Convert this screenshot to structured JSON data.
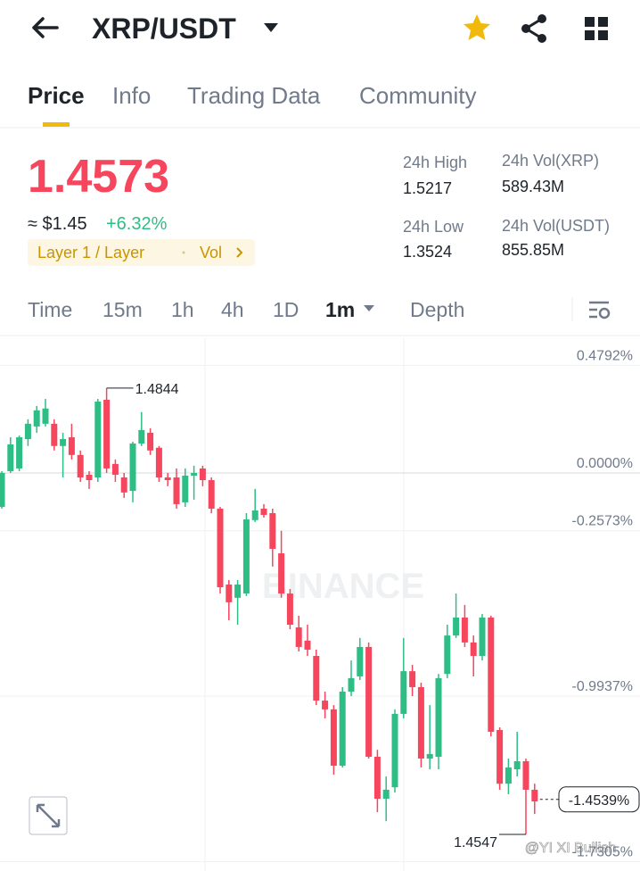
{
  "header": {
    "title": "XRP/USDT"
  },
  "tabs": [
    "Price",
    "Info",
    "Trading Data",
    "Community"
  ],
  "price": {
    "last": "1.4573",
    "approx": "≈ $1.45",
    "change": "+6.32%",
    "tags": [
      "Layer 1 / Layer",
      "Vol"
    ]
  },
  "stats": [
    {
      "label": "24h High",
      "value": "1.5217"
    },
    {
      "label": "24h Vol(XRP)",
      "value": "589.43M"
    },
    {
      "label": "24h Low",
      "value": "1.3524"
    },
    {
      "label": "24h Vol(USDT)",
      "value": "855.85M"
    }
  ],
  "intervals": [
    "Time",
    "15m",
    "1h",
    "4h",
    "1D",
    "1m",
    "Depth"
  ],
  "chart_data": {
    "type": "candlestick",
    "up_color": "#2ebd85",
    "down_color": "#f6465d",
    "watermark": "BINANCE",
    "ylim": [
      -1.749,
      0.604
    ],
    "yticks": [
      {
        "value": 0.4792,
        "label": "0.4792%"
      },
      {
        "value": 0,
        "label": "0.0000%"
      },
      {
        "value": -0.2573,
        "label": "-0.2573%"
      },
      {
        "value": -0.9937,
        "label": "-0.9937%"
      },
      {
        "value": -1.7305,
        "label": "-1.7305%"
      }
    ],
    "current": {
      "value": -1.4539,
      "label": "-1.4539%"
    },
    "annotations": [
      {
        "text": "1.4844"
      },
      {
        "text": "1.4547"
      }
    ],
    "candles": [
      {
        "o": -0.151,
        "h": 0.008,
        "l": -0.159,
        "c": 0.0
      },
      {
        "o": 0.008,
        "h": 0.159,
        "l": 0.0,
        "c": 0.127
      },
      {
        "o": 0.02,
        "h": 0.167,
        "l": 0.008,
        "c": 0.159
      },
      {
        "o": 0.151,
        "h": 0.239,
        "l": 0.12,
        "c": 0.219
      },
      {
        "o": 0.207,
        "h": 0.298,
        "l": 0.179,
        "c": 0.279
      },
      {
        "o": 0.219,
        "h": 0.33,
        "l": 0.207,
        "c": 0.287
      },
      {
        "o": 0.219,
        "h": 0.239,
        "l": 0.1,
        "c": 0.12
      },
      {
        "o": 0.12,
        "h": 0.179,
        "l": -0.02,
        "c": 0.151
      },
      {
        "o": 0.159,
        "h": 0.219,
        "l": 0.06,
        "c": 0.08
      },
      {
        "o": 0.08,
        "h": 0.1,
        "l": -0.04,
        "c": -0.02
      },
      {
        "o": -0.008,
        "h": 0.008,
        "l": -0.071,
        "c": -0.032
      },
      {
        "o": -0.02,
        "h": 0.33,
        "l": -0.04,
        "c": 0.318
      },
      {
        "o": 0.326,
        "h": 0.378,
        "l": 0.0,
        "c": 0.02
      },
      {
        "o": 0.04,
        "h": 0.06,
        "l": -0.04,
        "c": -0.008
      },
      {
        "o": -0.02,
        "h": 0.0,
        "l": -0.111,
        "c": -0.087
      },
      {
        "o": -0.08,
        "h": 0.139,
        "l": -0.131,
        "c": 0.131
      },
      {
        "o": 0.131,
        "h": 0.271,
        "l": 0.12,
        "c": 0.191
      },
      {
        "o": 0.179,
        "h": 0.199,
        "l": 0.08,
        "c": 0.1
      },
      {
        "o": 0.112,
        "h": 0.12,
        "l": -0.04,
        "c": -0.02
      },
      {
        "o": -0.02,
        "h": 0.0,
        "l": -0.059,
        "c": -0.032
      },
      {
        "o": -0.02,
        "h": 0.02,
        "l": -0.159,
        "c": -0.139
      },
      {
        "o": -0.131,
        "h": 0.02,
        "l": -0.151,
        "c": -0.012
      },
      {
        "o": -0.012,
        "h": 0.032,
        "l": -0.119,
        "c": 0.0
      },
      {
        "o": 0.02,
        "h": 0.032,
        "l": -0.059,
        "c": -0.032
      },
      {
        "o": -0.032,
        "h": -0.02,
        "l": -0.179,
        "c": -0.159
      },
      {
        "o": -0.159,
        "h": -0.151,
        "l": -0.537,
        "c": -0.509
      },
      {
        "o": -0.497,
        "h": -0.477,
        "l": -0.656,
        "c": -0.576
      },
      {
        "o": -0.556,
        "h": -0.477,
        "l": -0.676,
        "c": -0.497
      },
      {
        "o": -0.537,
        "h": -0.179,
        "l": -0.548,
        "c": -0.207
      },
      {
        "o": -0.21,
        "h": -0.071,
        "l": -0.218,
        "c": -0.167
      },
      {
        "o": -0.159,
        "h": -0.139,
        "l": -0.199,
        "c": -0.187
      },
      {
        "o": -0.179,
        "h": -0.159,
        "l": -0.417,
        "c": -0.338
      },
      {
        "o": -0.358,
        "h": -0.258,
        "l": -0.556,
        "c": -0.537
      },
      {
        "o": -0.537,
        "h": -0.517,
        "l": -0.696,
        "c": -0.676
      },
      {
        "o": -0.688,
        "h": -0.636,
        "l": -0.795,
        "c": -0.775
      },
      {
        "o": -0.747,
        "h": -0.676,
        "l": -0.815,
        "c": -0.787
      },
      {
        "o": -0.815,
        "h": -0.787,
        "l": -1.034,
        "c": -1.014
      },
      {
        "o": -1.014,
        "h": -0.974,
        "l": -1.093,
        "c": -1.053
      },
      {
        "o": -1.053,
        "h": -1.034,
        "l": -1.344,
        "c": -1.304
      },
      {
        "o": -1.304,
        "h": -0.954,
        "l": -1.312,
        "c": -0.974
      },
      {
        "o": -0.974,
        "h": -0.835,
        "l": -0.994,
        "c": -0.914
      },
      {
        "o": -0.906,
        "h": -0.735,
        "l": -0.922,
        "c": -0.775
      },
      {
        "o": -0.775,
        "h": -0.755,
        "l": -1.272,
        "c": -1.264
      },
      {
        "o": -1.264,
        "h": -1.233,
        "l": -1.511,
        "c": -1.451
      },
      {
        "o": -1.451,
        "h": -1.352,
        "l": -1.551,
        "c": -1.411
      },
      {
        "o": -1.4,
        "h": -1.053,
        "l": -1.423,
        "c": -1.073
      },
      {
        "o": -1.073,
        "h": -0.735,
        "l": -1.093,
        "c": -0.883
      },
      {
        "o": -0.883,
        "h": -0.855,
        "l": -0.994,
        "c": -0.954
      },
      {
        "o": -0.954,
        "h": -0.934,
        "l": -1.312,
        "c": -1.272
      },
      {
        "o": -1.272,
        "h": -1.034,
        "l": -1.32,
        "c": -1.252
      },
      {
        "o": -1.264,
        "h": -0.895,
        "l": -1.32,
        "c": -0.914
      },
      {
        "o": -0.895,
        "h": -0.676,
        "l": -0.914,
        "c": -0.724
      },
      {
        "o": -0.724,
        "h": -0.537,
        "l": -0.735,
        "c": -0.644
      },
      {
        "o": -0.644,
        "h": -0.588,
        "l": -0.775,
        "c": -0.755
      },
      {
        "o": -0.755,
        "h": -0.724,
        "l": -0.906,
        "c": -0.815
      },
      {
        "o": -0.815,
        "h": -0.628,
        "l": -0.835,
        "c": -0.644
      },
      {
        "o": -0.644,
        "h": -0.636,
        "l": -1.173,
        "c": -1.153
      },
      {
        "o": -1.145,
        "h": -1.133,
        "l": -1.411,
        "c": -1.384
      },
      {
        "o": -1.384,
        "h": -1.272,
        "l": -1.431,
        "c": -1.312
      },
      {
        "o": -1.32,
        "h": -1.153,
        "l": -1.352,
        "c": -1.284
      },
      {
        "o": -1.284,
        "h": -1.272,
        "l": -1.61,
        "c": -1.411
      },
      {
        "o": -1.411,
        "h": -1.384,
        "l": -1.519,
        "c": -1.463
      }
    ]
  },
  "watermark": "@YI XI Bullish"
}
